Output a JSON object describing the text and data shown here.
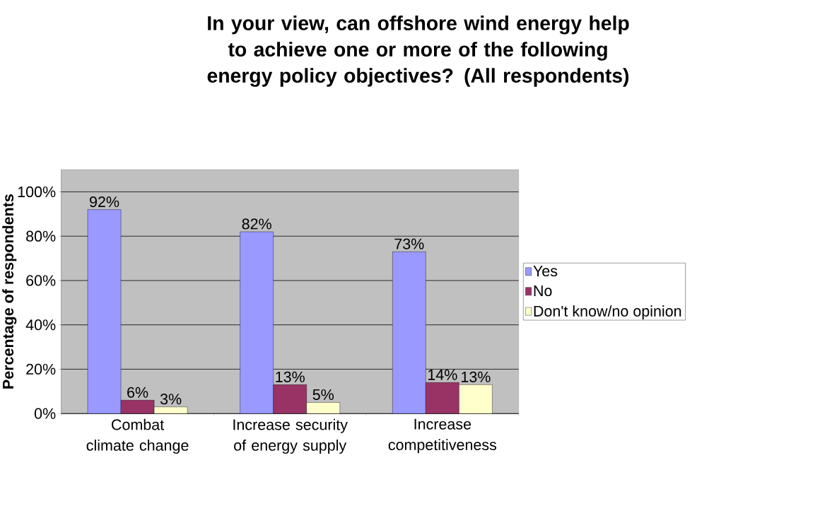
{
  "chart_data": {
    "type": "bar",
    "title": "In your view, can offshore wind energy help to achieve one or more of the following energy policy objectives? (All respondents)",
    "ylabel": "Percentage of respondents",
    "categories": [
      "Combat climate change",
      "Increase security of energy supply",
      "Increase competitiveness"
    ],
    "series": [
      {
        "name": "Yes",
        "color": "#9999ff",
        "values": [
          92,
          82,
          73
        ],
        "value_labels": [
          "92%",
          "82%",
          "73%"
        ]
      },
      {
        "name": "No",
        "color": "#993366",
        "values": [
          6,
          13,
          14
        ],
        "value_labels": [
          "6%",
          "13%",
          "14%"
        ]
      },
      {
        "name": "Don't know/no opinion",
        "color": "#ffffcc",
        "values": [
          3,
          5,
          13
        ],
        "value_labels": [
          "3%",
          "5%",
          "13%"
        ]
      }
    ],
    "ylim": [
      0,
      110
    ],
    "yticks": [
      {
        "value": 0,
        "label": "0%"
      },
      {
        "value": 20,
        "label": "20%"
      },
      {
        "value": 40,
        "label": "40%"
      },
      {
        "value": 60,
        "label": "60%"
      },
      {
        "value": 80,
        "label": "80%"
      },
      {
        "value": 100,
        "label": "100%"
      }
    ],
    "grid": "y",
    "legend": "right"
  }
}
